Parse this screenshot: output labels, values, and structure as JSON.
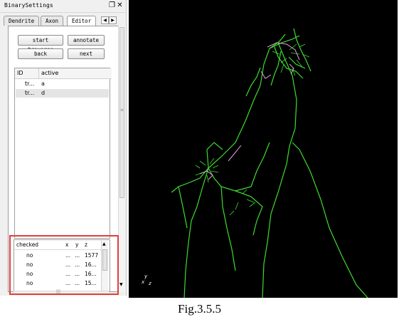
{
  "window": {
    "title": "BinarySettings",
    "icons": [
      "restore-icon",
      "close-icon"
    ]
  },
  "tabs": [
    {
      "label": "Dendrite",
      "active": false
    },
    {
      "label": "Axon",
      "active": false
    },
    {
      "label": "Editor",
      "active": true
    }
  ],
  "buttons": {
    "start_traverse": "start traverse",
    "annotate": "annotate",
    "back": "back",
    "next": "next"
  },
  "trace_table": {
    "columns": [
      "ID",
      "active"
    ],
    "rows": [
      {
        "id": "tr...",
        "active": "a"
      },
      {
        "id": "tr...",
        "active": "d"
      }
    ]
  },
  "points_table": {
    "columns": [
      "checked",
      "x",
      "y",
      "z"
    ],
    "rows": [
      {
        "checked": "no",
        "x": "...",
        "y": "...",
        "z": "1577"
      },
      {
        "checked": "no",
        "x": "...",
        "y": "...",
        "z": "16..."
      },
      {
        "checked": "no",
        "x": "...",
        "y": "...",
        "z": "16..."
      },
      {
        "checked": "no",
        "x": "...",
        "y": "...",
        "z": "15..."
      }
    ]
  },
  "viewer": {
    "axis_labels": {
      "y": "y",
      "x": "x",
      "z": "z"
    },
    "trace_colors": {
      "main": "#3ddc2f",
      "marked": "#e89be0"
    }
  },
  "caption": "Fig.3.5.5",
  "colors": {
    "highlight_box": "#e0403a",
    "viewer_bg": "#000000"
  }
}
